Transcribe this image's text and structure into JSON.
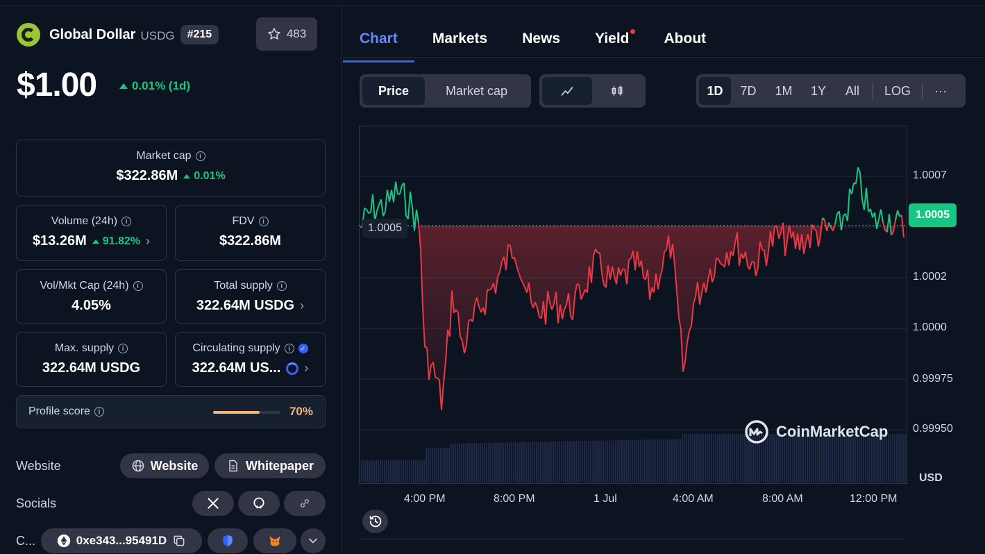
{
  "coin": {
    "name": "Global Dollar",
    "symbol": "USDG",
    "rank": "#215",
    "watchlist_count": "483",
    "price": "$1.00",
    "change": "0.01% (1d)"
  },
  "stats": {
    "market_cap": {
      "label": "Market cap",
      "value": "$322.86M",
      "change": "0.01%"
    },
    "volume": {
      "label": "Volume (24h)",
      "value": "$13.26M",
      "change": "91.82%"
    },
    "fdv": {
      "label": "FDV",
      "value": "$322.86M"
    },
    "vol_mkt_cap": {
      "label": "Vol/Mkt Cap (24h)",
      "value": "4.05%"
    },
    "total_supply": {
      "label": "Total supply",
      "value": "322.64M USDG"
    },
    "max_supply": {
      "label": "Max. supply",
      "value": "322.64M USDG"
    },
    "circulating_supply": {
      "label": "Circulating supply",
      "value": "322.64M US..."
    }
  },
  "profile_score": {
    "label": "Profile score",
    "value": "70%",
    "fraction": 0.7
  },
  "links": {
    "website_label": "Website",
    "website_btn": "Website",
    "whitepaper_btn": "Whitepaper",
    "socials_label": "Socials",
    "contracts_label": "C...",
    "contract_address": "0xe343...95491D"
  },
  "tabs": [
    {
      "label": "Chart"
    },
    {
      "label": "Markets"
    },
    {
      "label": "News"
    },
    {
      "label": "Yield"
    },
    {
      "label": "About"
    }
  ],
  "controls": {
    "price_btn": "Price",
    "market_cap_btn": "Market cap",
    "ranges": [
      "1D",
      "7D",
      "1M",
      "1Y",
      "All"
    ],
    "log_btn": "LOG",
    "more": "···"
  },
  "chart": {
    "current_price": "1.0005",
    "start_price": "1.0005",
    "watermark": "CoinMarketCap",
    "currency": "USD",
    "y_ticks": [
      "1.0007",
      "1.0005",
      "1.0002",
      "1.0000",
      "0.99975",
      "0.99950"
    ],
    "x_ticks": [
      "4:00 PM",
      "8:00 PM",
      "1 Jul",
      "4:00 AM",
      "8:00 AM",
      "12:00 PM"
    ]
  },
  "colors": {
    "up": "#16c784",
    "down": "#ea3943",
    "accent": "#3861fb",
    "score": "#f4b47c"
  }
}
